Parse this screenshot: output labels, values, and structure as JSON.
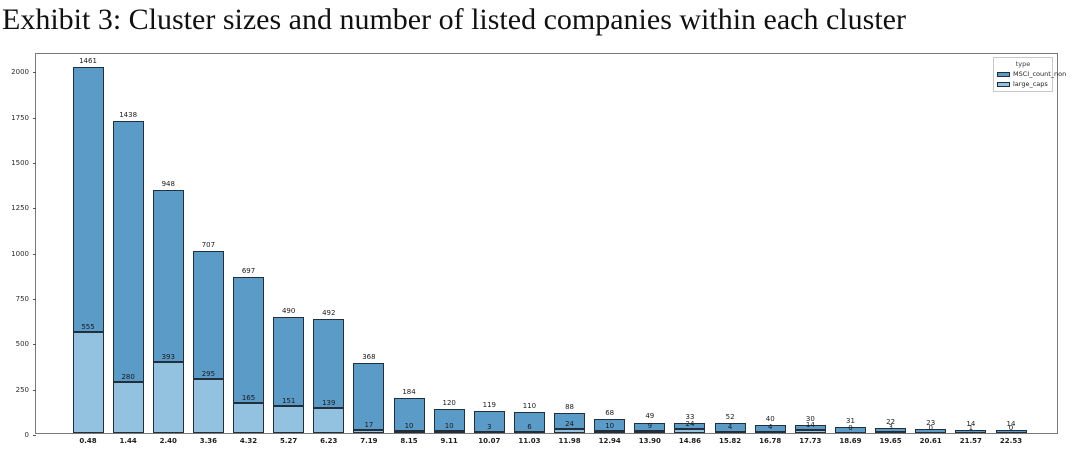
{
  "title": "Exhibit 3: Cluster sizes and number of listed companies within each cluster",
  "legend": {
    "title": "type",
    "entries": [
      {
        "label": "MSCI_count_non",
        "color": "#5b9bc8"
      },
      {
        "label": "large_caps",
        "color": "#92c2df"
      }
    ]
  },
  "chart_data": {
    "type": "bar",
    "stacked": true,
    "title": "Exhibit 3: Cluster sizes and number of listed companies within each cluster",
    "xlabel": "",
    "ylabel": "",
    "categories": [
      "0.48",
      "1.44",
      "2.40",
      "3.36",
      "4.32",
      "5.27",
      "6.23",
      "7.19",
      "8.15",
      "9.11",
      "10.07",
      "11.03",
      "11.98",
      "12.94",
      "13.90",
      "14.86",
      "15.82",
      "16.78",
      "17.73",
      "18.69",
      "19.65",
      "20.61",
      "21.57",
      "22.53"
    ],
    "series": [
      {
        "name": "large_caps",
        "color": "#92c2df",
        "values": [
          555,
          280,
          393,
          295,
          165,
          151,
          139,
          17,
          10,
          10,
          3,
          6,
          24,
          10,
          9,
          24,
          4,
          4,
          14,
          0,
          3,
          0,
          1,
          0
        ]
      },
      {
        "name": "MSCI_count_non",
        "color": "#5b9bc8",
        "values": [
          1461,
          1438,
          948,
          707,
          697,
          490,
          492,
          368,
          184,
          120,
          119,
          110,
          88,
          68,
          49,
          33,
          52,
          40,
          30,
          31,
          22,
          23,
          14,
          14
        ]
      }
    ],
    "bar_labels_shown": true,
    "ylim": [
      0,
      2100
    ],
    "yticks": [
      0,
      250,
      500,
      750,
      1000,
      1250,
      1500,
      1750,
      2000
    ],
    "grid": false,
    "legend_position": "upper right"
  }
}
